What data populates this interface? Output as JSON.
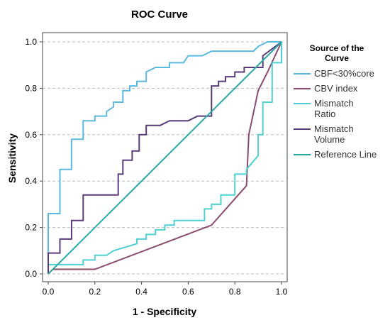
{
  "chart_data": {
    "type": "line",
    "title": "ROC Curve",
    "xlabel": "1 - Specificity",
    "ylabel": "Sensitivity",
    "xlim": [
      0,
      1
    ],
    "ylim": [
      0,
      1
    ],
    "xticks": [
      "0.0",
      "0.2",
      "0.4",
      "0.6",
      "0.8",
      "1.0"
    ],
    "yticks": [
      "0.0",
      "0.2",
      "0.4",
      "0.6",
      "0.8",
      "1.0"
    ],
    "grid": "horizontal dashed",
    "legend": {
      "position": "right",
      "title": [
        "Source of the",
        "Curve"
      ]
    },
    "series": [
      {
        "name": [
          "CBF<30%core"
        ],
        "color": "#5bb8df",
        "x": [
          0.0,
          0.0,
          0.05,
          0.05,
          0.1,
          0.1,
          0.15,
          0.15,
          0.2,
          0.2,
          0.25,
          0.25,
          0.28,
          0.28,
          0.32,
          0.32,
          0.35,
          0.35,
          0.38,
          0.38,
          0.42,
          0.42,
          0.46,
          0.52,
          0.52,
          0.58,
          0.6,
          0.62,
          0.66,
          0.7,
          0.72,
          0.72,
          0.88,
          0.9,
          0.94,
          1.0
        ],
        "y": [
          0.0,
          0.26,
          0.26,
          0.45,
          0.45,
          0.58,
          0.58,
          0.66,
          0.66,
          0.68,
          0.68,
          0.7,
          0.72,
          0.74,
          0.74,
          0.79,
          0.79,
          0.81,
          0.81,
          0.83,
          0.83,
          0.87,
          0.89,
          0.89,
          0.91,
          0.91,
          0.94,
          0.94,
          0.94,
          0.96,
          0.96,
          0.96,
          0.96,
          0.98,
          1.0,
          1.0
        ]
      },
      {
        "name": [
          "CBV index"
        ],
        "color": "#8b4a6e",
        "x": [
          0.0,
          0.02,
          0.2,
          0.7,
          0.85,
          0.86,
          0.9,
          0.94,
          1.0
        ],
        "y": [
          0.0,
          0.02,
          0.02,
          0.21,
          0.38,
          0.6,
          0.79,
          0.87,
          1.0
        ]
      },
      {
        "name": [
          "Mismatch",
          "Ratio"
        ],
        "color": "#4fd1d4",
        "x": [
          0.0,
          0.0,
          0.15,
          0.15,
          0.2,
          0.2,
          0.25,
          0.28,
          0.28,
          0.38,
          0.38,
          0.42,
          0.42,
          0.46,
          0.46,
          0.5,
          0.5,
          0.54,
          0.54,
          0.67,
          0.67,
          0.7,
          0.7,
          0.74,
          0.74,
          0.8,
          0.8,
          0.85,
          0.85,
          0.9,
          0.9,
          0.92,
          0.92,
          0.96,
          0.96,
          1.0,
          1.0
        ],
        "y": [
          0.0,
          0.04,
          0.04,
          0.06,
          0.06,
          0.08,
          0.08,
          0.1,
          0.1,
          0.13,
          0.15,
          0.15,
          0.17,
          0.17,
          0.19,
          0.19,
          0.21,
          0.21,
          0.23,
          0.23,
          0.28,
          0.28,
          0.3,
          0.3,
          0.34,
          0.34,
          0.43,
          0.43,
          0.45,
          0.51,
          0.6,
          0.6,
          0.74,
          0.74,
          0.91,
          0.91,
          1.0
        ]
      },
      {
        "name": [
          "Mismatch",
          "Volume"
        ],
        "color": "#5a3b7a",
        "x": [
          0.0,
          0.0,
          0.05,
          0.05,
          0.1,
          0.1,
          0.15,
          0.15,
          0.3,
          0.3,
          0.32,
          0.32,
          0.36,
          0.36,
          0.39,
          0.39,
          0.42,
          0.42,
          0.48,
          0.52,
          0.6,
          0.64,
          0.7,
          0.7,
          0.73,
          0.73,
          0.76,
          0.76,
          0.8,
          0.8,
          0.84,
          0.84,
          0.92,
          0.92,
          1.0
        ],
        "y": [
          0.0,
          0.09,
          0.09,
          0.15,
          0.15,
          0.23,
          0.23,
          0.34,
          0.34,
          0.43,
          0.43,
          0.49,
          0.49,
          0.53,
          0.53,
          0.6,
          0.6,
          0.64,
          0.64,
          0.66,
          0.66,
          0.68,
          0.68,
          0.81,
          0.81,
          0.83,
          0.83,
          0.85,
          0.85,
          0.87,
          0.87,
          0.89,
          0.89,
          0.94,
          1.0
        ]
      },
      {
        "name": [
          "Reference Line"
        ],
        "color": "#2aa7a7",
        "x": [
          0.0,
          1.0
        ],
        "y": [
          0.0,
          1.0
        ]
      }
    ]
  }
}
